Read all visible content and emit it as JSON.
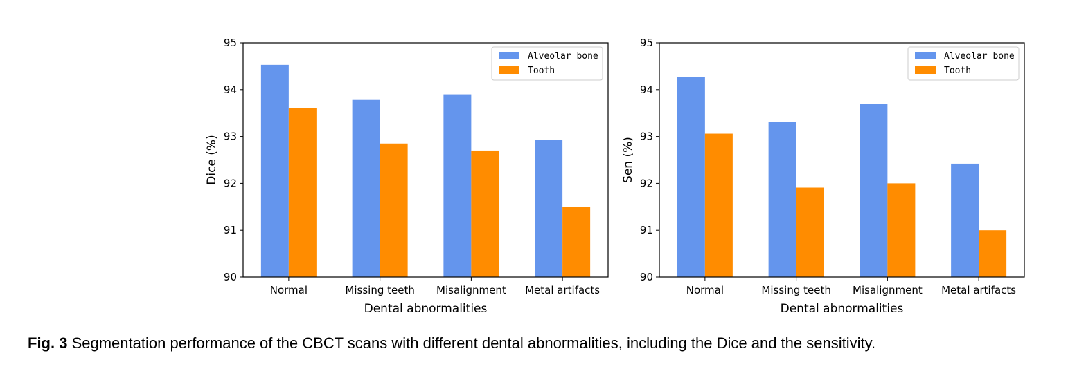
{
  "caption": {
    "label": "Fig. 3",
    "text": " Segmentation performance of the CBCT scans with different dental abnormalities, including the Dice and the sensitivity."
  },
  "colors": {
    "alveolar_bone": "#6495ed",
    "tooth": "#ff8c00"
  },
  "chart_data": [
    {
      "type": "bar",
      "categories": [
        "Normal",
        "Missing teeth",
        "Misalignment",
        "Metal artifacts"
      ],
      "series": [
        {
          "name": "Alveolar bone",
          "values": [
            94.53,
            93.78,
            93.9,
            92.93
          ]
        },
        {
          "name": "Tooth",
          "values": [
            93.61,
            92.85,
            92.7,
            91.49
          ]
        }
      ],
      "xlabel": "Dental abnormalities",
      "ylabel": "Dice (%)",
      "ylim": [
        90,
        95
      ],
      "yticks": [
        "90",
        "91",
        "92",
        "93",
        "94",
        "95"
      ],
      "legend": "top-right",
      "grid": false
    },
    {
      "type": "bar",
      "categories": [
        "Normal",
        "Missing teeth",
        "Misalignment",
        "Metal artifacts"
      ],
      "series": [
        {
          "name": "Alveolar bone",
          "values": [
            94.27,
            93.31,
            93.7,
            92.42
          ]
        },
        {
          "name": "Tooth",
          "values": [
            93.06,
            91.91,
            92.0,
            91.0
          ]
        }
      ],
      "xlabel": "Dental abnormalities",
      "ylabel": "Sen (%)",
      "ylim": [
        90,
        95
      ],
      "yticks": [
        "90",
        "91",
        "92",
        "93",
        "94",
        "95"
      ],
      "legend": "top-right",
      "grid": false
    }
  ]
}
